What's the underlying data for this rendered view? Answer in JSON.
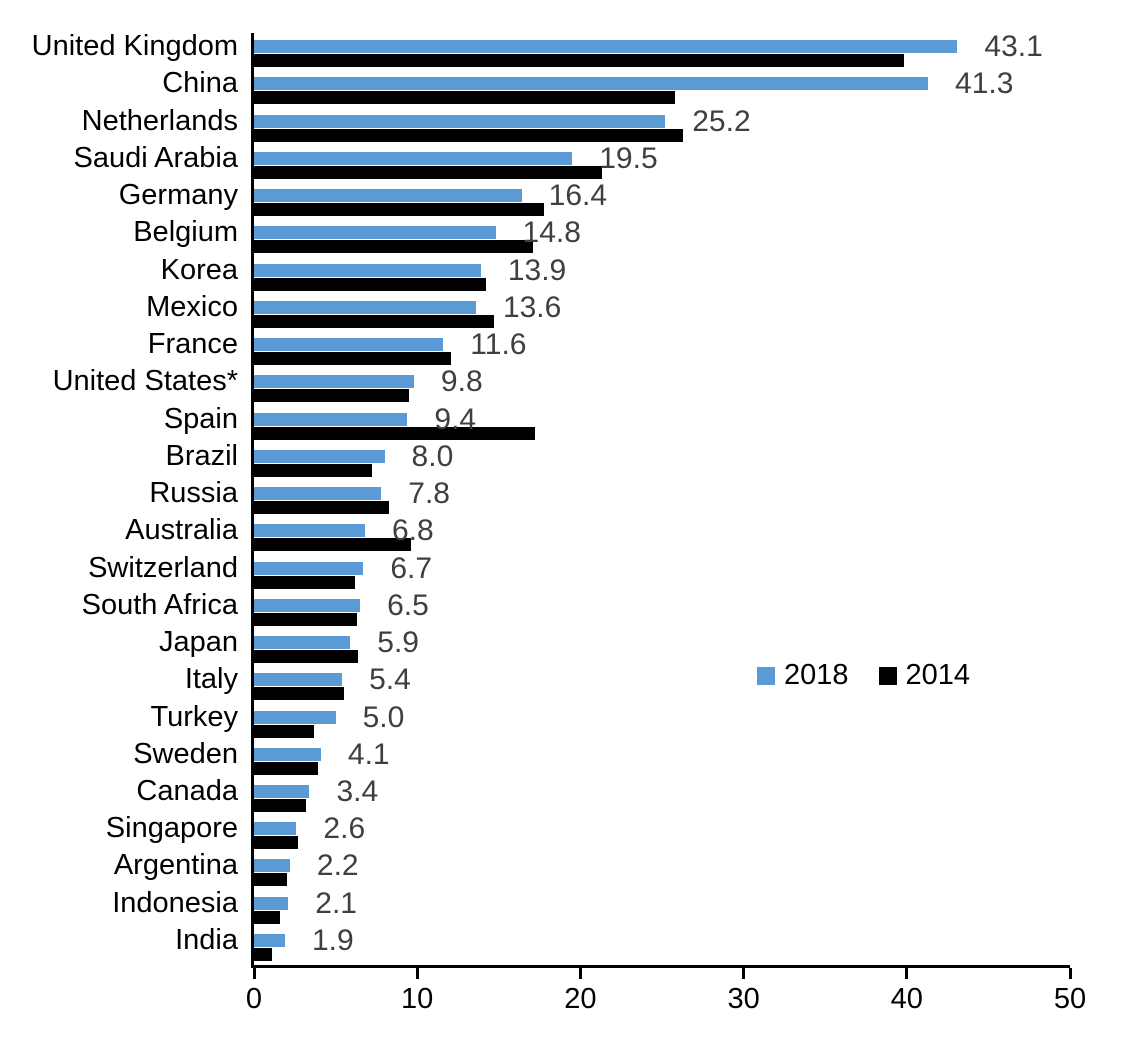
{
  "chart_data": {
    "type": "bar",
    "orientation": "horizontal",
    "title": "",
    "categories": [
      "United Kingdom",
      "China",
      "Netherlands",
      "Saudi Arabia",
      "Germany",
      "Belgium",
      "Korea",
      "Mexico",
      "France",
      "United States*",
      "Spain",
      "Brazil",
      "Russia",
      "Australia",
      "Switzerland",
      "South Africa",
      "Japan",
      "Italy",
      "Turkey",
      "Sweden",
      "Canada",
      "Singapore",
      "Argentina",
      "Indonesia",
      "India"
    ],
    "series": [
      {
        "name": "2018",
        "color": "#5B9BD5",
        "values": [
          43.1,
          41.3,
          25.2,
          19.5,
          16.4,
          14.8,
          13.9,
          13.6,
          11.6,
          9.8,
          9.4,
          8.0,
          7.8,
          6.8,
          6.7,
          6.5,
          5.9,
          5.4,
          5.0,
          4.1,
          3.4,
          2.6,
          2.2,
          2.1,
          1.9
        ]
      },
      {
        "name": "2014",
        "color": "#000000",
        "values": [
          39.8,
          25.8,
          26.3,
          21.3,
          17.8,
          17.1,
          14.2,
          14.7,
          12.1,
          9.5,
          17.2,
          7.2,
          8.3,
          9.6,
          6.2,
          6.3,
          6.4,
          5.5,
          3.7,
          3.9,
          3.2,
          2.7,
          2.0,
          1.6,
          1.1
        ]
      }
    ],
    "data_labels": [
      "43.1",
      "41.3",
      "25.2",
      "19.5",
      "16.4",
      "14.8",
      "13.9",
      "13.6",
      "11.6",
      "9.8",
      "9.4",
      "8.0",
      "7.8",
      "6.8",
      "6.7",
      "6.5",
      "5.9",
      "5.4",
      "5.0",
      "4.1",
      "3.4",
      "2.6",
      "2.2",
      "2.1",
      "1.9"
    ],
    "data_label_series": "2018",
    "xlim": [
      0,
      50
    ],
    "x_ticks": [
      "0",
      "10",
      "20",
      "30",
      "40",
      "50"
    ],
    "grid": false,
    "legend_position": "center-right"
  },
  "colors": {
    "series_2018": "#5B9BD5",
    "series_2014": "#000000",
    "data_label": "#3F3F3F",
    "axis": "#000000",
    "background": "#FFFFFF"
  },
  "legend": {
    "items": [
      {
        "label": "2018",
        "color": "#5B9BD5"
      },
      {
        "label": "2014",
        "color": "#000000"
      }
    ]
  }
}
